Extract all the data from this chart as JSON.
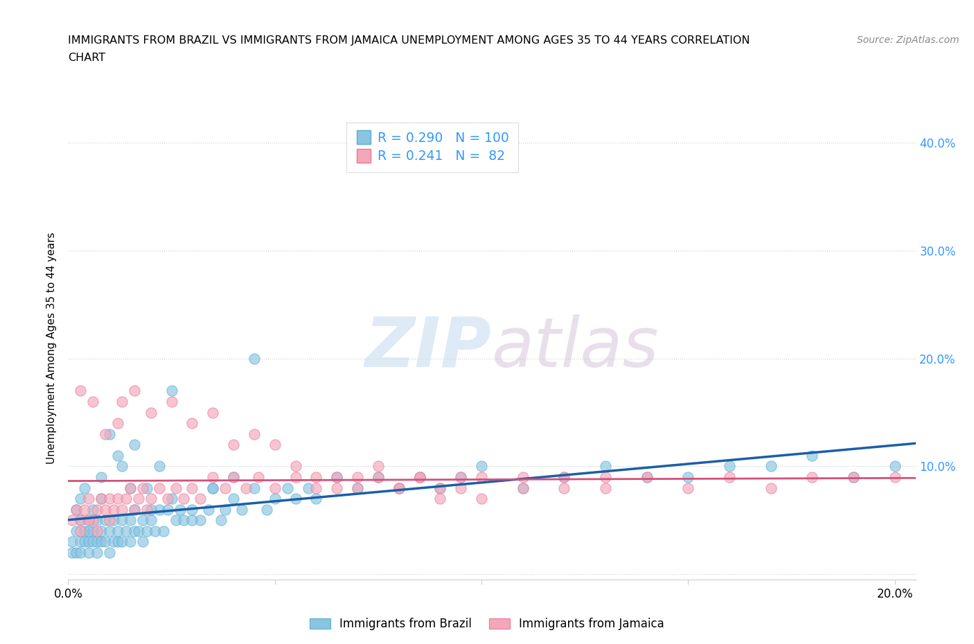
{
  "title_line1": "IMMIGRANTS FROM BRAZIL VS IMMIGRANTS FROM JAMAICA UNEMPLOYMENT AMONG AGES 35 TO 44 YEARS CORRELATION",
  "title_line2": "CHART",
  "source": "Source: ZipAtlas.com",
  "ylabel": "Unemployment Among Ages 35 to 44 years",
  "watermark_zip": "ZIP",
  "watermark_atlas": "atlas",
  "brazil_color": "#89c4e1",
  "brazil_edge": "#5aafd4",
  "jamaica_color": "#f4a7b9",
  "jamaica_edge": "#e8799a",
  "brazil_line_color": "#1a5fa8",
  "jamaica_line_color": "#d44f7a",
  "brazil_R": 0.29,
  "brazil_N": 100,
  "jamaica_R": 0.241,
  "jamaica_N": 82,
  "xlim": [
    0.0,
    0.205
  ],
  "ylim": [
    -0.005,
    0.425
  ],
  "legend_text_color": "#3399ff",
  "brazil_trend_start": 0.025,
  "brazil_trend_end": 0.105,
  "jamaica_trend_start": 0.055,
  "jamaica_trend_end": 0.089,
  "brazil_x": [
    0.001,
    0.001,
    0.002,
    0.002,
    0.003,
    0.003,
    0.003,
    0.004,
    0.004,
    0.005,
    0.005,
    0.005,
    0.006,
    0.006,
    0.007,
    0.007,
    0.007,
    0.008,
    0.008,
    0.009,
    0.009,
    0.01,
    0.01,
    0.011,
    0.011,
    0.012,
    0.012,
    0.013,
    0.013,
    0.014,
    0.015,
    0.015,
    0.016,
    0.016,
    0.017,
    0.018,
    0.018,
    0.019,
    0.02,
    0.021,
    0.022,
    0.023,
    0.024,
    0.025,
    0.026,
    0.027,
    0.028,
    0.03,
    0.032,
    0.034,
    0.035,
    0.037,
    0.038,
    0.04,
    0.042,
    0.045,
    0.048,
    0.05,
    0.053,
    0.055,
    0.058,
    0.06,
    0.065,
    0.07,
    0.075,
    0.08,
    0.085,
    0.09,
    0.095,
    0.1,
    0.11,
    0.12,
    0.13,
    0.14,
    0.15,
    0.16,
    0.17,
    0.18,
    0.19,
    0.2,
    0.005,
    0.008,
    0.012,
    0.015,
    0.02,
    0.025,
    0.03,
    0.035,
    0.04,
    0.045,
    0.002,
    0.003,
    0.004,
    0.006,
    0.008,
    0.01,
    0.013,
    0.016,
    0.019,
    0.022
  ],
  "brazil_y": [
    0.03,
    0.02,
    0.04,
    0.02,
    0.03,
    0.05,
    0.02,
    0.04,
    0.03,
    0.03,
    0.05,
    0.02,
    0.04,
    0.03,
    0.05,
    0.03,
    0.02,
    0.04,
    0.03,
    0.05,
    0.03,
    0.04,
    0.02,
    0.05,
    0.03,
    0.04,
    0.03,
    0.05,
    0.03,
    0.04,
    0.05,
    0.03,
    0.04,
    0.06,
    0.04,
    0.05,
    0.03,
    0.04,
    0.05,
    0.04,
    0.06,
    0.04,
    0.06,
    0.07,
    0.05,
    0.06,
    0.05,
    0.06,
    0.05,
    0.06,
    0.08,
    0.05,
    0.06,
    0.07,
    0.06,
    0.08,
    0.06,
    0.07,
    0.08,
    0.07,
    0.08,
    0.07,
    0.09,
    0.08,
    0.09,
    0.08,
    0.09,
    0.08,
    0.09,
    0.1,
    0.08,
    0.09,
    0.1,
    0.09,
    0.09,
    0.1,
    0.1,
    0.11,
    0.09,
    0.1,
    0.04,
    0.07,
    0.11,
    0.08,
    0.06,
    0.17,
    0.05,
    0.08,
    0.09,
    0.2,
    0.06,
    0.07,
    0.08,
    0.06,
    0.09,
    0.13,
    0.1,
    0.12,
    0.08,
    0.1
  ],
  "jamaica_x": [
    0.001,
    0.002,
    0.003,
    0.004,
    0.005,
    0.006,
    0.007,
    0.008,
    0.009,
    0.01,
    0.011,
    0.012,
    0.013,
    0.014,
    0.015,
    0.016,
    0.017,
    0.018,
    0.019,
    0.02,
    0.022,
    0.024,
    0.026,
    0.028,
    0.03,
    0.032,
    0.035,
    0.038,
    0.04,
    0.043,
    0.046,
    0.05,
    0.055,
    0.06,
    0.065,
    0.07,
    0.075,
    0.08,
    0.085,
    0.09,
    0.095,
    0.1,
    0.11,
    0.12,
    0.13,
    0.14,
    0.15,
    0.16,
    0.17,
    0.18,
    0.19,
    0.2,
    0.003,
    0.005,
    0.007,
    0.01,
    0.013,
    0.016,
    0.02,
    0.025,
    0.03,
    0.035,
    0.04,
    0.045,
    0.05,
    0.055,
    0.06,
    0.065,
    0.07,
    0.075,
    0.08,
    0.085,
    0.09,
    0.095,
    0.1,
    0.11,
    0.12,
    0.13,
    0.003,
    0.006,
    0.009,
    0.012
  ],
  "jamaica_y": [
    0.05,
    0.06,
    0.05,
    0.06,
    0.07,
    0.05,
    0.06,
    0.07,
    0.06,
    0.07,
    0.06,
    0.07,
    0.06,
    0.07,
    0.08,
    0.06,
    0.07,
    0.08,
    0.06,
    0.07,
    0.08,
    0.07,
    0.08,
    0.07,
    0.08,
    0.07,
    0.09,
    0.08,
    0.09,
    0.08,
    0.09,
    0.08,
    0.09,
    0.08,
    0.09,
    0.08,
    0.09,
    0.08,
    0.09,
    0.08,
    0.09,
    0.09,
    0.08,
    0.09,
    0.08,
    0.09,
    0.08,
    0.09,
    0.08,
    0.09,
    0.09,
    0.09,
    0.04,
    0.05,
    0.04,
    0.05,
    0.16,
    0.17,
    0.15,
    0.16,
    0.14,
    0.15,
    0.12,
    0.13,
    0.12,
    0.1,
    0.09,
    0.08,
    0.09,
    0.1,
    0.08,
    0.09,
    0.07,
    0.08,
    0.07,
    0.09,
    0.08,
    0.09,
    0.17,
    0.16,
    0.13,
    0.14
  ]
}
